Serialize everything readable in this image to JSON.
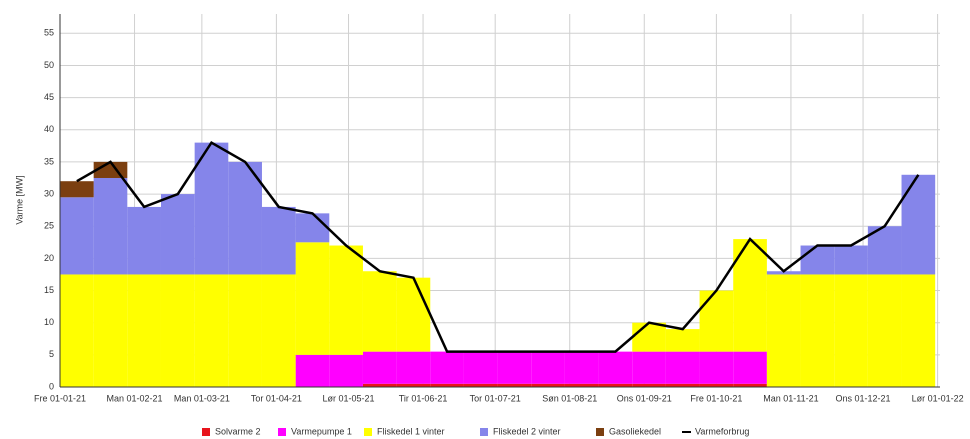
{
  "chart_data": {
    "type": "bar",
    "stacked": true,
    "grid": true,
    "legend": "bottom",
    "ylabel": "Varme [MW]",
    "xlim": [
      0,
      366
    ],
    "ylim": [
      0,
      58
    ],
    "xticks": [
      {
        "value": 0,
        "label": "Fre 01-01-21"
      },
      {
        "value": 31,
        "label": "Man 01-02-21"
      },
      {
        "value": 59,
        "label": "Man 01-03-21"
      },
      {
        "value": 90,
        "label": "Tor 01-04-21"
      },
      {
        "value": 120,
        "label": "Lør 01-05-21"
      },
      {
        "value": 151,
        "label": "Tir 01-06-21"
      },
      {
        "value": 181,
        "label": "Tor 01-07-21"
      },
      {
        "value": 212,
        "label": "Søn 01-08-21"
      },
      {
        "value": 243,
        "label": "Ons 01-09-21"
      },
      {
        "value": 273,
        "label": "Fre 01-10-21"
      },
      {
        "value": 304,
        "label": "Man 01-11-21"
      },
      {
        "value": 334,
        "label": "Ons 01-12-21"
      },
      {
        "value": 365,
        "label": "Lør 01-01-22"
      }
    ],
    "yticks": [
      0,
      5,
      10,
      15,
      20,
      25,
      30,
      35,
      40,
      45,
      50,
      55
    ],
    "x": [
      7,
      21,
      35,
      49,
      63,
      77,
      91,
      105,
      119,
      133,
      147,
      161,
      175,
      189,
      203,
      217,
      231,
      245,
      259,
      273,
      287,
      301,
      315,
      329,
      343,
      357
    ],
    "series": [
      {
        "name": "Solvarme 2",
        "color": "#e8141c",
        "values": [
          0,
          0,
          0,
          0,
          0,
          0,
          0,
          0,
          0,
          0.5,
          0.5,
          0.5,
          0.5,
          0.5,
          0.5,
          0.5,
          0.5,
          0.5,
          0.5,
          0.5,
          0.5,
          0,
          0,
          0,
          0,
          0
        ]
      },
      {
        "name": "Varmepumpe 1",
        "color": "#ff00ff",
        "values": [
          0,
          0,
          0,
          0,
          0,
          0,
          0,
          5,
          5,
          5,
          5,
          5,
          5,
          5,
          5,
          5,
          5,
          5,
          5,
          5,
          5,
          0,
          0,
          0,
          0,
          0
        ]
      },
      {
        "name": "Fliskedel 1 vinter",
        "color": "#ffff00",
        "values": [
          17.5,
          17.5,
          17.5,
          17.5,
          17.5,
          17.5,
          17.5,
          17.5,
          17,
          12.5,
          11.5,
          0,
          0,
          0,
          0,
          0,
          0,
          4.5,
          3.5,
          9.5,
          17.5,
          17.5,
          17.5,
          17.5,
          17.5,
          17.5
        ]
      },
      {
        "name": "Fliskedel 2 vinter",
        "color": "#8585ea",
        "values": [
          12,
          15,
          10.5,
          12.5,
          20.5,
          17.5,
          10.5,
          4.5,
          0,
          0,
          0,
          0,
          0,
          0,
          0,
          0,
          0,
          0,
          0,
          0,
          0,
          0.5,
          4.5,
          4.5,
          7.5,
          15.5
        ]
      },
      {
        "name": "Gasoliekedel",
        "color": "#7b3f10",
        "values": [
          2.5,
          2.5,
          0,
          0,
          0,
          0,
          0,
          0,
          0,
          0,
          0,
          0,
          0,
          0,
          0,
          0,
          0,
          0,
          0,
          0,
          0,
          0,
          0,
          0,
          0,
          0
        ]
      },
      {
        "name": "Varmeforbrug",
        "color": "#000000",
        "type": "line",
        "values": [
          32,
          35,
          28,
          30,
          38,
          35,
          28,
          27,
          22,
          18,
          17,
          5.5,
          5.5,
          5.5,
          5.5,
          5.5,
          5.5,
          10,
          9,
          15,
          23,
          18,
          22,
          22,
          25,
          33
        ]
      }
    ]
  }
}
